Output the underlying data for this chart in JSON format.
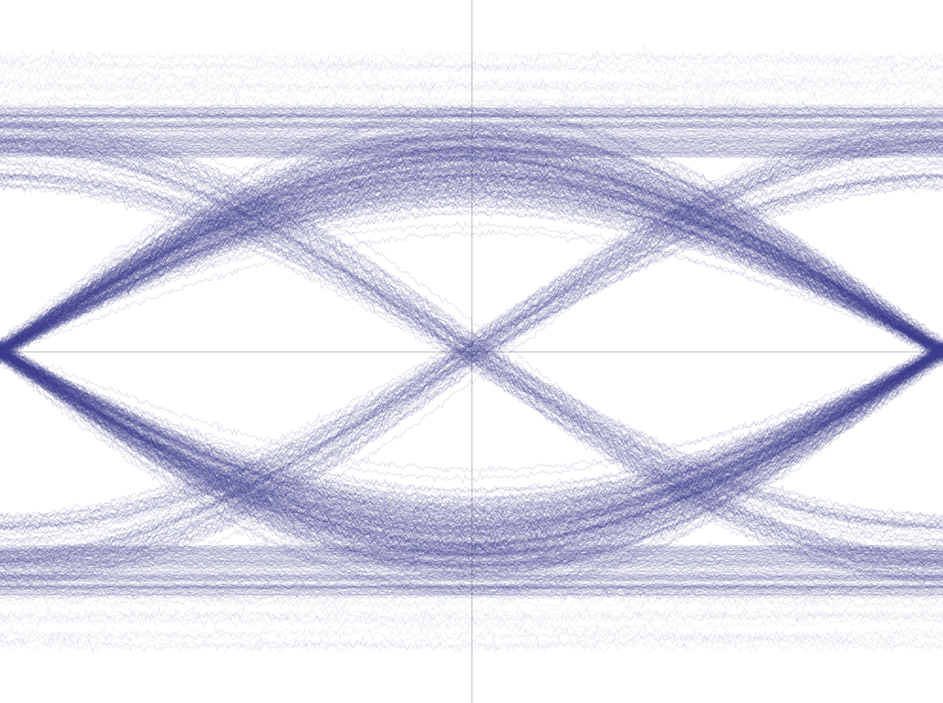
{
  "line_color": "#3d3d8f",
  "line_alpha": 0.18,
  "line_width": 0.6,
  "background_color": "#ffffff",
  "grid_color": "#bbbbbb",
  "grid_linewidth": 0.7,
  "figsize": [
    10.52,
    7.84
  ],
  "dpi": 100,
  "xlim": [
    0,
    1
  ],
  "ylim": [
    -1.6,
    1.6
  ],
  "num_arc_traces": 180,
  "num_flat_traces": 100,
  "num_outlier_traces": 20,
  "arc_amp_mean": 0.85,
  "arc_amp_std": 0.12,
  "flat_level": 1.0,
  "flat_spread": 0.12,
  "noise_std": 0.008,
  "jitter_std": 0.008,
  "outlier_amp_min": 1.05,
  "outlier_amp_max": 1.35
}
